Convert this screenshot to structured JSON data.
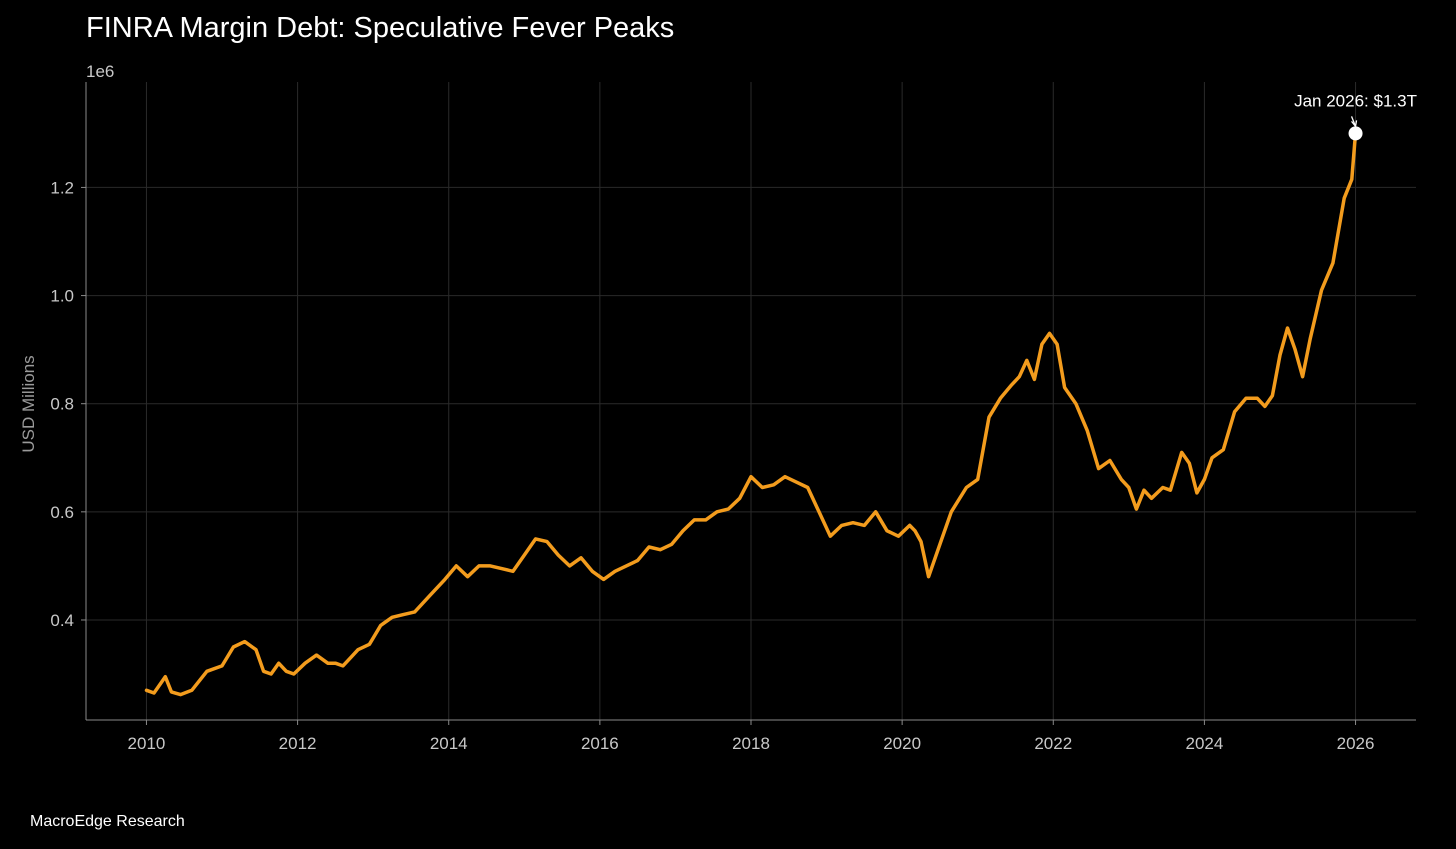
{
  "footer": {
    "source": "MacroEdge Research"
  },
  "chart_data": {
    "type": "line",
    "title": "FINRA Margin Debt: Speculative Fever Peaks",
    "xlabel": "",
    "ylabel": "USD Millions",
    "y_offset_label": "1e6",
    "xlim": [
      2009.2,
      2026.8
    ],
    "ylim": [
      0.215,
      1.395
    ],
    "x_ticks": [
      2010,
      2012,
      2014,
      2016,
      2018,
      2020,
      2022,
      2024,
      2026
    ],
    "x_tick_labels": [
      "2010",
      "2012",
      "2014",
      "2016",
      "2018",
      "2020",
      "2022",
      "2024",
      "2026"
    ],
    "y_ticks": [
      0.4,
      0.6,
      0.8,
      1.0,
      1.2
    ],
    "y_tick_labels": [
      "0.4",
      "0.6",
      "0.8",
      "1.0",
      "1.2"
    ],
    "grid": true,
    "series": [
      {
        "name": "Margin Debt",
        "color": "#f39c1d",
        "x": [
          2010.0,
          2010.1,
          2010.25,
          2010.33,
          2010.45,
          2010.6,
          2010.8,
          2011.0,
          2011.15,
          2011.3,
          2011.45,
          2011.55,
          2011.65,
          2011.75,
          2011.85,
          2011.95,
          2012.1,
          2012.25,
          2012.4,
          2012.5,
          2012.6,
          2012.7,
          2012.8,
          2012.95,
          2013.1,
          2013.25,
          2013.4,
          2013.55,
          2013.75,
          2013.95,
          2014.1,
          2014.25,
          2014.4,
          2014.55,
          2014.7,
          2014.85,
          2015.0,
          2015.15,
          2015.3,
          2015.45,
          2015.6,
          2015.75,
          2015.9,
          2016.05,
          2016.2,
          2016.35,
          2016.5,
          2016.65,
          2016.8,
          2016.95,
          2017.1,
          2017.25,
          2017.4,
          2017.55,
          2017.7,
          2017.85,
          2018.0,
          2018.15,
          2018.3,
          2018.45,
          2018.6,
          2018.75,
          2018.9,
          2019.05,
          2019.2,
          2019.35,
          2019.5,
          2019.65,
          2019.8,
          2019.95,
          2020.1,
          2020.17,
          2020.25,
          2020.35,
          2020.5,
          2020.65,
          2020.85,
          2021.0,
          2021.15,
          2021.3,
          2021.45,
          2021.55,
          2021.65,
          2021.75,
          2021.85,
          2021.95,
          2022.05,
          2022.15,
          2022.3,
          2022.45,
          2022.6,
          2022.75,
          2022.9,
          2023.0,
          2023.1,
          2023.2,
          2023.3,
          2023.45,
          2023.55,
          2023.7,
          2023.8,
          2023.9,
          2024.0,
          2024.1,
          2024.25,
          2024.4,
          2024.55,
          2024.7,
          2024.8,
          2024.9,
          2025.0,
          2025.1,
          2025.2,
          2025.3,
          2025.4,
          2025.55,
          2025.7,
          2025.85,
          2025.95,
          2026.0
        ],
        "values": [
          0.27,
          0.265,
          0.295,
          0.267,
          0.262,
          0.27,
          0.305,
          0.315,
          0.35,
          0.36,
          0.345,
          0.305,
          0.3,
          0.32,
          0.305,
          0.3,
          0.32,
          0.335,
          0.32,
          0.32,
          0.315,
          0.33,
          0.345,
          0.355,
          0.39,
          0.405,
          0.41,
          0.415,
          0.445,
          0.475,
          0.5,
          0.48,
          0.5,
          0.5,
          0.495,
          0.49,
          0.52,
          0.55,
          0.545,
          0.52,
          0.5,
          0.515,
          0.49,
          0.475,
          0.49,
          0.5,
          0.51,
          0.535,
          0.53,
          0.54,
          0.565,
          0.585,
          0.585,
          0.6,
          0.605,
          0.625,
          0.665,
          0.645,
          0.65,
          0.665,
          0.655,
          0.645,
          0.6,
          0.555,
          0.575,
          0.58,
          0.575,
          0.6,
          0.565,
          0.555,
          0.575,
          0.565,
          0.545,
          0.48,
          0.54,
          0.6,
          0.645,
          0.66,
          0.775,
          0.81,
          0.835,
          0.85,
          0.88,
          0.845,
          0.91,
          0.93,
          0.91,
          0.83,
          0.8,
          0.75,
          0.68,
          0.695,
          0.66,
          0.645,
          0.605,
          0.64,
          0.625,
          0.645,
          0.64,
          0.71,
          0.69,
          0.635,
          0.66,
          0.7,
          0.715,
          0.785,
          0.81,
          0.81,
          0.795,
          0.815,
          0.89,
          0.94,
          0.9,
          0.85,
          0.92,
          1.01,
          1.06,
          1.18,
          1.215,
          1.3
        ]
      }
    ],
    "annotations": [
      {
        "text": "Jan 2026: $1.3T",
        "x": 2026.0,
        "y": 1.3
      }
    ]
  }
}
